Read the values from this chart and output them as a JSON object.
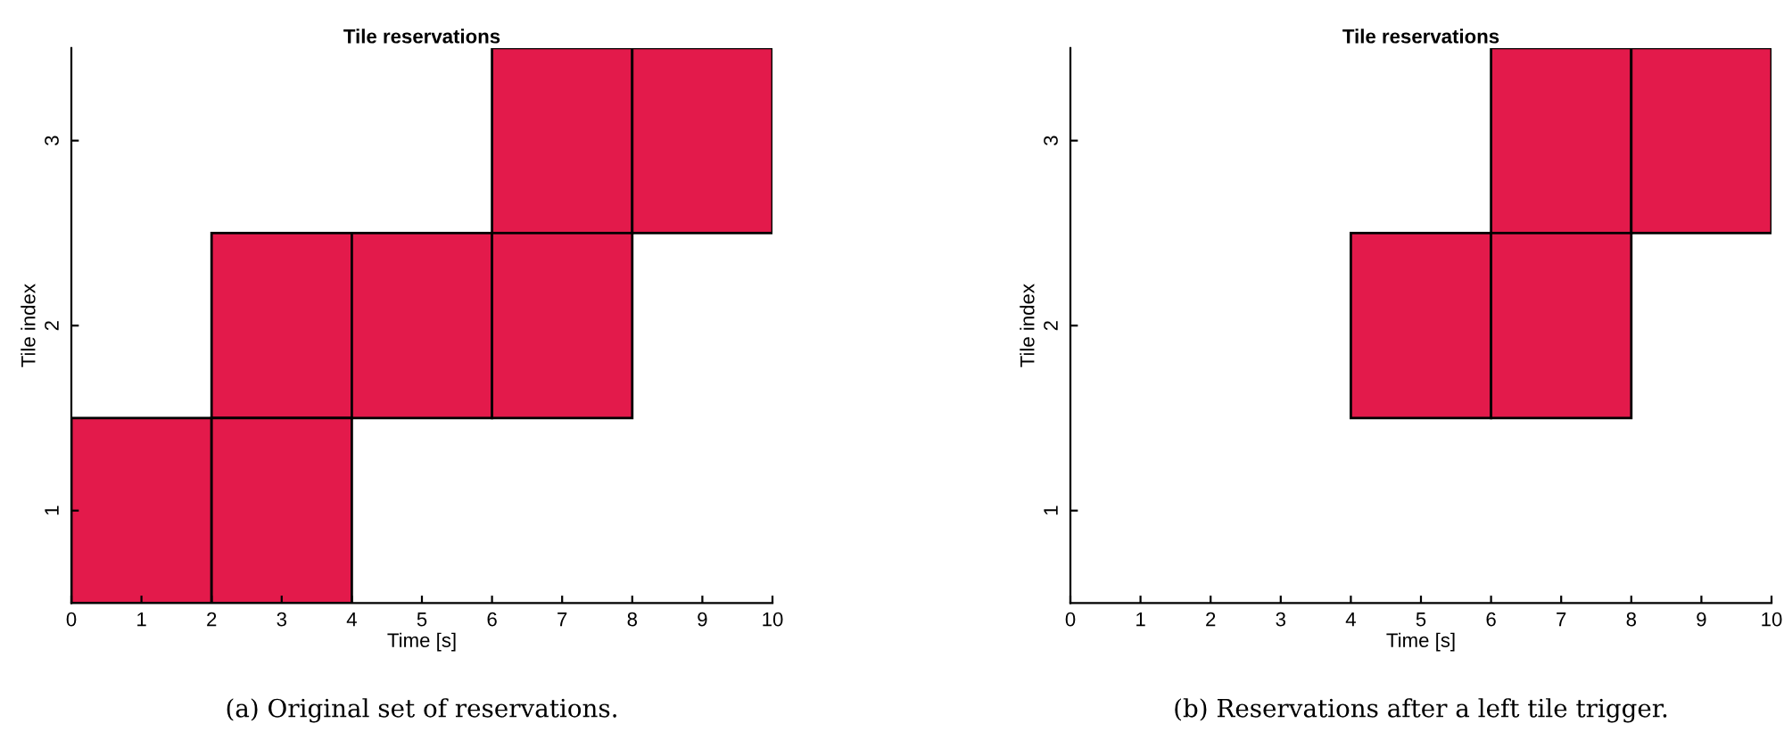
{
  "chart_data": [
    {
      "type": "bar",
      "orientation": "horizontal",
      "title": "Tile reservations",
      "xlabel": "Time [s]",
      "ylabel": "Tile index",
      "categories": [
        "3",
        "2",
        "1"
      ],
      "xlim": [
        0,
        10
      ],
      "xticks": [
        0,
        1,
        2,
        3,
        4,
        5,
        6,
        7,
        8,
        9,
        10
      ],
      "grid": false,
      "legend": false,
      "series": [
        {
          "color": "#e31a4b",
          "values": [
            2,
            2,
            2
          ],
          "base": [
            6,
            2,
            0
          ]
        },
        {
          "color": "#e31a4b",
          "values": [
            2,
            2,
            2
          ],
          "base": [
            8,
            4,
            2
          ]
        },
        {
          "color": "#e31a4b",
          "values": [
            null,
            2,
            null
          ],
          "base": [
            null,
            6,
            null
          ]
        }
      ],
      "annotations": [
        "(a) Original set of reservations."
      ]
    },
    {
      "type": "bar",
      "orientation": "horizontal",
      "title": "Tile reservations",
      "xlabel": "Time [s]",
      "ylabel": "Tile index",
      "categories": [
        "3",
        "2",
        "1"
      ],
      "xlim": [
        0,
        10
      ],
      "xticks": [
        0,
        1,
        2,
        3,
        4,
        5,
        6,
        7,
        8,
        9,
        10
      ],
      "grid": false,
      "legend": false,
      "series": [
        {
          "color": "#e31a4b",
          "values": [
            2,
            2,
            null
          ],
          "base": [
            6,
            4,
            null
          ]
        },
        {
          "color": "#e31a4b",
          "values": [
            2,
            2,
            null
          ],
          "base": [
            8,
            6,
            null
          ]
        }
      ],
      "annotations": [
        "(b) Reservations after a left tile trigger."
      ]
    }
  ]
}
